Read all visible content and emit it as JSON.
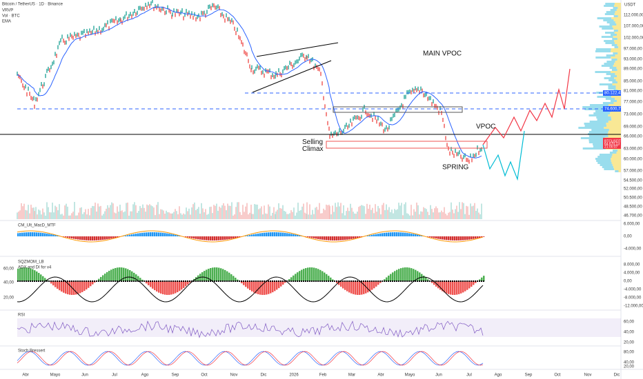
{
  "header": {
    "symbol": "Bitcoin / TetherUS · 1D · Binance",
    "indicators": [
      "VRVP",
      "Vol · BTC",
      "EMA"
    ]
  },
  "panes": {
    "macd": "CM_Ult_MacD_MTF",
    "squeeze": "SQZMOM_LB",
    "adx": "ADX and DI for v4",
    "rsi": "RSI",
    "stoch": "Stoch Bressert"
  },
  "annotations": {
    "main_vpoc": "MAIN VPOC",
    "vpoc": "VPOC",
    "selling_climax": "Selling Climax",
    "spring": "SPRING"
  },
  "price_axis": {
    "currency": "USDT",
    "labels": [
      "112.000,00",
      "107.000,00",
      "102.000,00",
      "97.000,00",
      "93.000,00",
      "89.000,00",
      "85.000,00",
      "81.000,00",
      "77.000,00",
      "73.000,00",
      "69.000,00",
      "66.000,00",
      "63.000,00",
      "60.000,00",
      "57.000,00",
      "54.500,00",
      "52.000,00",
      "50.500,00",
      "48.500,00",
      "46.700,00"
    ]
  },
  "price_tags": {
    "upper_line": "80.122,47",
    "lower_line": "74.600,77",
    "symbol": "BTCUSDT",
    "last_price": "64.670,13",
    "countdown": "21:00:07"
  },
  "macd_axis": [
    "6.000,00",
    "0,00",
    "-4.000,00"
  ],
  "squeeze_axis": [
    "8.000,00",
    "4.000,00",
    "0,00",
    "-4.000,00",
    "-8.000,00",
    "-12.000,00"
  ],
  "adx_axis": [
    "60,00",
    "40,00",
    "20,00"
  ],
  "rsi_axis": [
    "60,00",
    "40,00",
    "20,00"
  ],
  "stoch_axis": [
    "80,00",
    "40,00",
    "20,00"
  ],
  "time_axis": [
    "Abr",
    "Mayo",
    "Jun",
    "Jul",
    "Ago",
    "Sep",
    "Oct",
    "Nov",
    "Dic",
    "2026",
    "Feb",
    "Mar",
    "Abr",
    "Mayo",
    "Jun",
    "Jul",
    "Ago",
    "Sep",
    "Oct",
    "Nov",
    "Dic"
  ]
}
